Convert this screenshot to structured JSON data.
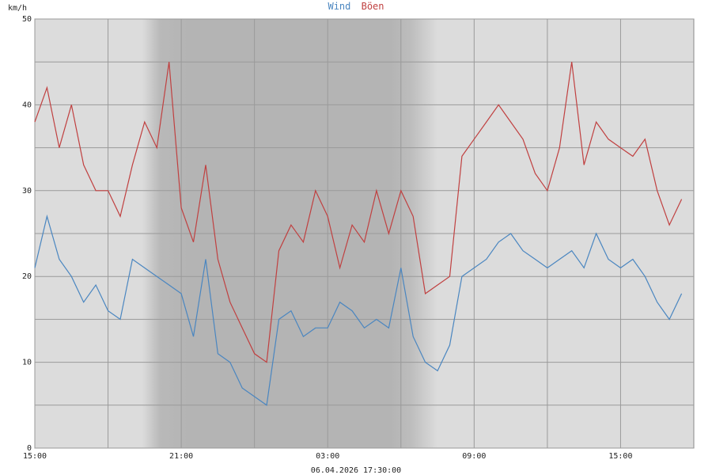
{
  "chart_data": {
    "type": "line",
    "title_parts": [
      {
        "text": "Wind",
        "color": "#4a86c0"
      },
      {
        "text": "Böen",
        "color": "#c04040"
      }
    ],
    "ylabel": "km/h",
    "xlabel": "06.04.2026 17:30:00",
    "ylim": [
      0,
      50
    ],
    "y_ticks": [
      0,
      10,
      20,
      30,
      40,
      50
    ],
    "x_range_hours": [
      0,
      27
    ],
    "x_ticks": [
      {
        "hour": 0,
        "label": "15:00"
      },
      {
        "hour": 6,
        "label": "21:00"
      },
      {
        "hour": 12,
        "label": "03:00"
      },
      {
        "hour": 18,
        "label": "09:00"
      },
      {
        "hour": 24,
        "label": "15:00"
      }
    ],
    "minor_x_hours": [
      3,
      9,
      15,
      21
    ],
    "night_shading": {
      "full_start": 6,
      "full_end": 15,
      "twilight_dawn_start": 4.4,
      "twilight_dusk_end": 16.5
    },
    "grid": true,
    "series": [
      {
        "name": "Wind",
        "color": "#4a86c0",
        "x": [
          0,
          0.5,
          1,
          1.5,
          2,
          2.5,
          3,
          3.5,
          4,
          4.5,
          5,
          5.5,
          6,
          6.5,
          7,
          7.5,
          8,
          8.5,
          9,
          9.5,
          10,
          10.5,
          11,
          11.5,
          12,
          12.5,
          13,
          13.5,
          14,
          14.5,
          15,
          15.5,
          16,
          16.5,
          17,
          17.5,
          18,
          18.5,
          19,
          19.5,
          20,
          20.5,
          21,
          21.5,
          22,
          22.5,
          23,
          23.5,
          24,
          24.5,
          25,
          25.5,
          26,
          26.5
        ],
        "values": [
          21,
          27,
          22,
          20,
          17,
          19,
          16,
          15,
          22,
          21,
          20,
          19,
          18,
          13,
          22,
          11,
          10,
          7,
          6,
          5,
          15,
          16,
          13,
          14,
          14,
          17,
          16,
          14,
          15,
          14,
          21,
          13,
          10,
          9,
          12,
          20,
          21,
          22,
          24,
          25,
          23,
          22,
          21,
          22,
          23,
          21,
          25,
          22,
          21,
          22,
          20,
          17,
          15,
          18
        ]
      },
      {
        "name": "Böen",
        "color": "#c04040",
        "x": [
          0,
          0.5,
          1,
          1.5,
          2,
          2.5,
          3,
          3.5,
          4,
          4.5,
          5,
          5.5,
          6,
          6.5,
          7,
          7.5,
          8,
          8.5,
          9,
          9.5,
          10,
          10.5,
          11,
          11.5,
          12,
          12.5,
          13,
          13.5,
          14,
          14.5,
          15,
          15.5,
          16,
          16.5,
          17,
          17.5,
          18,
          18.5,
          19,
          19.5,
          20,
          20.5,
          21,
          21.5,
          22,
          22.5,
          23,
          23.5,
          24,
          24.5,
          25,
          25.5,
          26,
          26.5
        ],
        "values": [
          38,
          42,
          35,
          40,
          33,
          30,
          30,
          27,
          33,
          38,
          35,
          45,
          28,
          24,
          33,
          22,
          17,
          14,
          11,
          10,
          23,
          26,
          24,
          30,
          27,
          21,
          26,
          24,
          30,
          25,
          30,
          27,
          18,
          19,
          20,
          34,
          36,
          38,
          40,
          38,
          36,
          32,
          30,
          35,
          45,
          33,
          38,
          36,
          35,
          34,
          36,
          30,
          26,
          29
        ]
      }
    ]
  }
}
